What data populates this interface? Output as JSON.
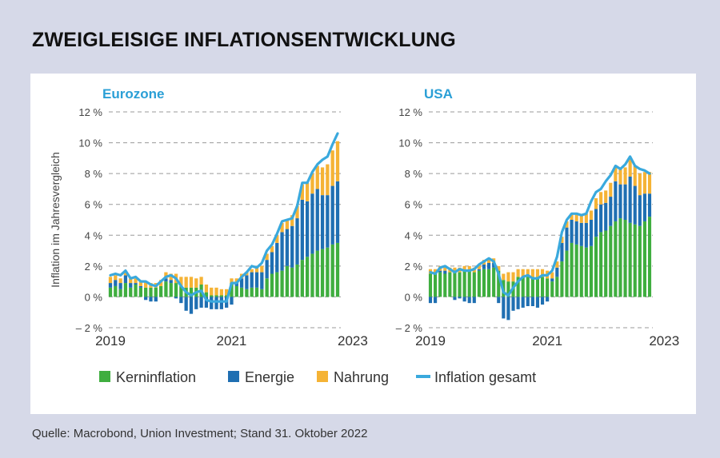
{
  "title": "ZWEIGLEISIGE INFLATIONSENTWICKLUNG",
  "source": "Quelle: Macrobond, Union Investment; Stand 31. Oktober 2022",
  "y_axis_label": "Inflation im Jahresvergleich",
  "colors": {
    "kern": "#3fae3f",
    "energie": "#1f6fb2",
    "nahrung": "#f5b335",
    "gesamt": "#3aa9dd",
    "panel_title": "#2a9fd6"
  },
  "legend": [
    {
      "label": "Kerninflation",
      "kind": "square",
      "color_key": "kern"
    },
    {
      "label": "Energie",
      "kind": "square",
      "color_key": "energie"
    },
    {
      "label": "Nahrung",
      "kind": "square",
      "color_key": "nahrung"
    },
    {
      "label": "Inflation gesamt",
      "kind": "line",
      "color_key": "gesamt"
    }
  ],
  "chart_data": [
    {
      "type": "bar",
      "title": "Eurozone",
      "stacked": true,
      "ylabel": "Inflation im Jahresvergleich",
      "ylim": [
        -2,
        12
      ],
      "y_ticks": [
        12,
        10,
        8,
        6,
        4,
        2,
        0,
        -2
      ],
      "y_tick_labels": [
        "12 %",
        "10 %",
        "8 %",
        "6 %",
        "4 %",
        "2 %",
        "0 %",
        "– 2 %"
      ],
      "x_tick_labels": [
        "2019",
        "2021",
        "2023"
      ],
      "x_start": "2019-01",
      "x_end": "2022-10",
      "grid": "horizontal dashed",
      "series": [
        {
          "name": "Kerninflation",
          "type": "bar",
          "values": [
            0.6,
            0.7,
            0.5,
            0.9,
            0.6,
            0.8,
            0.6,
            0.6,
            0.6,
            0.6,
            0.7,
            1.0,
            0.9,
            0.9,
            0.7,
            0.6,
            0.6,
            0.6,
            0.8,
            0.3,
            0.1,
            0.1,
            0.1,
            0.1,
            0.9,
            0.7,
            0.6,
            0.5,
            0.6,
            0.6,
            0.5,
            1.2,
            1.5,
            1.6,
            1.7,
            2.0,
            1.9,
            2.1,
            2.4,
            2.6,
            2.8,
            3.0,
            3.1,
            3.2,
            3.4,
            3.5
          ]
        },
        {
          "name": "Energie",
          "type": "bar",
          "values": [
            0.3,
            0.4,
            0.4,
            0.5,
            0.3,
            0.1,
            0.1,
            -0.2,
            -0.3,
            -0.3,
            0.0,
            0.2,
            0.2,
            -0.1,
            -0.4,
            -0.9,
            -1.1,
            -0.8,
            -0.7,
            -0.7,
            -0.8,
            -0.8,
            -0.8,
            -0.7,
            -0.5,
            0.2,
            0.6,
            0.9,
            1.0,
            1.0,
            1.1,
            1.2,
            1.4,
            1.9,
            2.5,
            2.4,
            2.7,
            3.0,
            3.9,
            3.6,
            3.9,
            4.0,
            3.5,
            3.4,
            3.8,
            4.0
          ]
        },
        {
          "name": "Nahrung",
          "type": "bar",
          "values": [
            0.4,
            0.3,
            0.3,
            0.3,
            0.3,
            0.3,
            0.3,
            0.4,
            0.3,
            0.3,
            0.4,
            0.4,
            0.4,
            0.6,
            0.6,
            0.7,
            0.7,
            0.6,
            0.5,
            0.5,
            0.5,
            0.5,
            0.4,
            0.4,
            0.3,
            0.3,
            0.3,
            0.2,
            0.2,
            0.3,
            0.4,
            0.4,
            0.4,
            0.5,
            0.6,
            0.6,
            0.7,
            0.8,
            1.0,
            1.2,
            1.3,
            1.5,
            1.8,
            2.0,
            2.3,
            2.6
          ]
        },
        {
          "name": "Inflation gesamt",
          "type": "line",
          "values": [
            1.4,
            1.5,
            1.4,
            1.7,
            1.2,
            1.3,
            1.0,
            1.0,
            0.8,
            0.7,
            1.0,
            1.3,
            1.4,
            1.2,
            0.7,
            0.3,
            0.1,
            0.3,
            0.4,
            -0.2,
            -0.3,
            -0.3,
            -0.3,
            -0.3,
            0.9,
            0.9,
            1.3,
            1.6,
            2.0,
            1.9,
            2.2,
            3.0,
            3.4,
            4.1,
            4.9,
            5.0,
            5.1,
            5.9,
            7.4,
            7.4,
            8.1,
            8.6,
            8.9,
            9.1,
            9.9,
            10.6
          ]
        }
      ]
    },
    {
      "type": "bar",
      "title": "USA",
      "stacked": true,
      "ylim": [
        -2,
        12
      ],
      "y_ticks": [
        12,
        10,
        8,
        6,
        4,
        2,
        0,
        -2
      ],
      "y_tick_labels": [
        "12 %",
        "10 %",
        "8 %",
        "6 %",
        "4 %",
        "2 %",
        "0 %",
        "– 2 %"
      ],
      "x_tick_labels": [
        "2019",
        "2021",
        "2023"
      ],
      "x_start": "2019-01",
      "x_end": "2022-10",
      "grid": "horizontal dashed",
      "series": [
        {
          "name": "Kerninflation",
          "type": "bar",
          "values": [
            1.5,
            1.5,
            1.6,
            1.5,
            1.6,
            1.6,
            1.6,
            1.7,
            1.7,
            1.6,
            1.7,
            1.8,
            1.8,
            1.9,
            1.7,
            1.1,
            1.0,
            1.0,
            1.3,
            1.3,
            1.3,
            1.3,
            1.3,
            1.3,
            1.2,
            1.0,
            1.3,
            2.3,
            3.0,
            3.5,
            3.4,
            3.3,
            3.2,
            3.3,
            3.9,
            4.2,
            4.3,
            4.6,
            4.9,
            5.1,
            5.0,
            4.8,
            4.7,
            4.6,
            4.9,
            5.2
          ]
        },
        {
          "name": "Energie",
          "type": "bar",
          "values": [
            -0.4,
            -0.4,
            0.1,
            0.2,
            0.0,
            -0.2,
            -0.1,
            -0.3,
            -0.4,
            -0.4,
            0.1,
            0.3,
            0.4,
            0.3,
            -0.4,
            -1.4,
            -1.5,
            -0.9,
            -0.8,
            -0.7,
            -0.6,
            -0.6,
            -0.7,
            -0.5,
            -0.3,
            0.2,
            0.6,
            1.2,
            1.5,
            1.5,
            1.5,
            1.5,
            1.6,
            1.7,
            1.8,
            1.8,
            1.8,
            1.9,
            2.6,
            2.2,
            2.3,
            3.0,
            2.5,
            2.0,
            1.8,
            1.5
          ]
        },
        {
          "name": "Nahrung",
          "type": "bar",
          "values": [
            0.3,
            0.3,
            0.3,
            0.3,
            0.3,
            0.3,
            0.3,
            0.3,
            0.3,
            0.3,
            0.3,
            0.3,
            0.3,
            0.3,
            0.3,
            0.4,
            0.6,
            0.6,
            0.5,
            0.5,
            0.5,
            0.5,
            0.5,
            0.5,
            0.5,
            0.4,
            0.4,
            0.4,
            0.4,
            0.4,
            0.5,
            0.5,
            0.6,
            0.6,
            0.7,
            0.8,
            0.8,
            0.9,
            1.0,
            1.0,
            1.1,
            1.2,
            1.3,
            1.4,
            1.4,
            1.4
          ]
        },
        {
          "name": "Inflation gesamt",
          "type": "line",
          "values": [
            1.6,
            1.5,
            1.9,
            2.0,
            1.8,
            1.6,
            1.8,
            1.7,
            1.7,
            1.8,
            2.1,
            2.3,
            2.5,
            2.3,
            1.5,
            0.3,
            0.1,
            0.6,
            1.0,
            1.3,
            1.4,
            1.2,
            1.2,
            1.4,
            1.4,
            1.7,
            2.6,
            4.2,
            5.0,
            5.4,
            5.4,
            5.3,
            5.4,
            6.2,
            6.8,
            7.0,
            7.5,
            7.9,
            8.5,
            8.3,
            8.6,
            9.1,
            8.5,
            8.3,
            8.2,
            8.0
          ]
        }
      ]
    }
  ]
}
